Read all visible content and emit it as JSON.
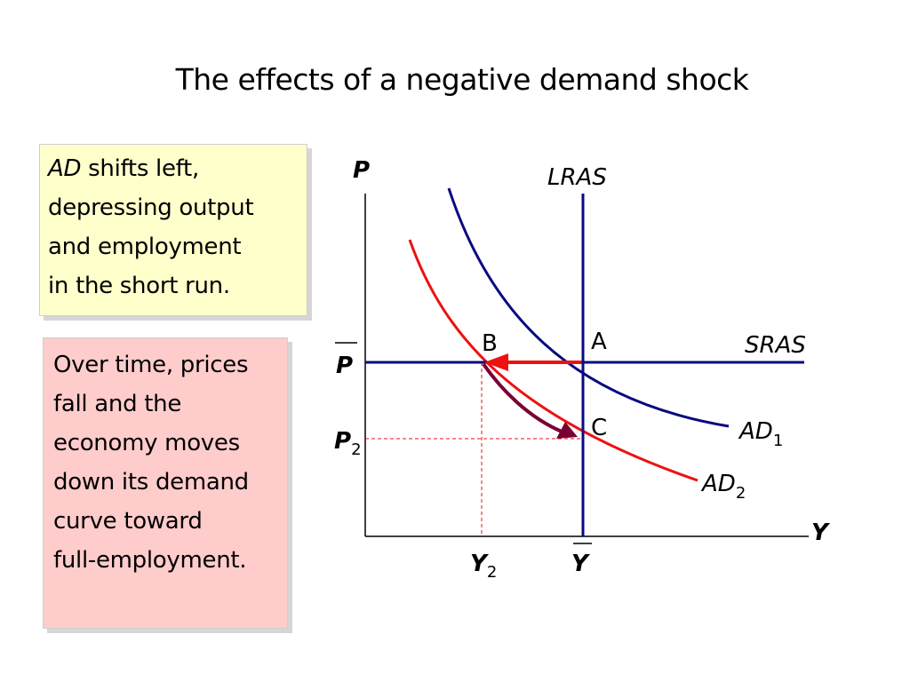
{
  "slide": {
    "title": "The effects of a negative demand shock"
  },
  "callouts": {
    "shift_box": {
      "lines": [
        {
          "lead": "AD",
          "text": " shifts left,"
        },
        {
          "lead": "",
          "text": "depressing output"
        },
        {
          "lead": "",
          "text": "and employment"
        },
        {
          "lead": "",
          "text": "in the short run."
        }
      ],
      "background": "#ffffcc"
    },
    "adjust_box": {
      "lines": [
        "Over time, prices",
        "fall and the",
        "economy moves",
        "down its demand",
        "curve toward",
        "full-employment."
      ],
      "background": "#ffcccc"
    }
  },
  "diagram": {
    "axes": {
      "y_label": "P",
      "x_label": "Y"
    },
    "curves": {
      "lras_label": "LRAS",
      "sras_label": "SRAS",
      "ad1_label": "AD",
      "ad1_sub": "1",
      "ad2_label": "AD",
      "ad2_sub": "2"
    },
    "points": {
      "a": "A",
      "b": "B",
      "c": "C"
    },
    "price_labels": {
      "p_bar": "P",
      "p2": "P",
      "p2_sub": "2"
    },
    "output_labels": {
      "y2": "Y",
      "y2_sub": "2",
      "y_bar": "Y"
    },
    "colors": {
      "navy": "#0a0a80",
      "red": "#ee1111",
      "arrow_shift": "#ee1111",
      "arrow_move": "#7a0033",
      "axis": "#000000"
    }
  }
}
